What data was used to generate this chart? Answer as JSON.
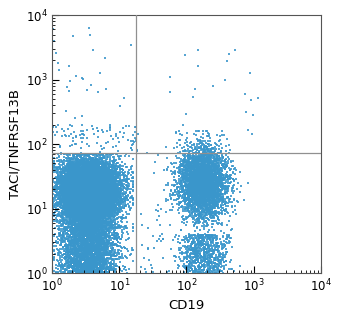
{
  "xlabel": "CD19",
  "ylabel": "TACI/TNFRSF13B",
  "xlim": [
    1,
    10000
  ],
  "ylim": [
    1,
    10000
  ],
  "dot_color": "#3a96cb",
  "dot_size": 0.8,
  "dot_alpha": 0.85,
  "crosshair_x": 18,
  "crosshair_y": 72,
  "crosshair_color": "#909090",
  "crosshair_lw": 0.9,
  "background_color": "#ffffff",
  "cluster1": {
    "x_log_mean": 0.55,
    "x_log_std": 0.22,
    "y_log_mean": 1.3,
    "y_log_std": 0.22,
    "n": 12000
  },
  "cluster1_low": {
    "x_log_mean": 0.55,
    "x_log_std": 0.22,
    "y_log_mean": 0.5,
    "y_log_std": 0.35,
    "n": 5000
  },
  "cluster2": {
    "x_log_mean": 2.25,
    "x_log_std": 0.18,
    "y_log_mean": 1.4,
    "y_log_std": 0.28,
    "n": 4000
  },
  "cluster2_low": {
    "x_log_mean": 2.25,
    "x_log_std": 0.18,
    "y_log_mean": 0.3,
    "y_log_std": 0.3,
    "n": 800
  },
  "sparse_upper_left": {
    "n": 30
  },
  "sparse_upper_right": {
    "n": 25
  },
  "seed": 42,
  "fig_width": 3.4,
  "fig_height": 3.2,
  "dpi": 100,
  "label_fontsize": 9.5,
  "tick_fontsize": 8.5
}
